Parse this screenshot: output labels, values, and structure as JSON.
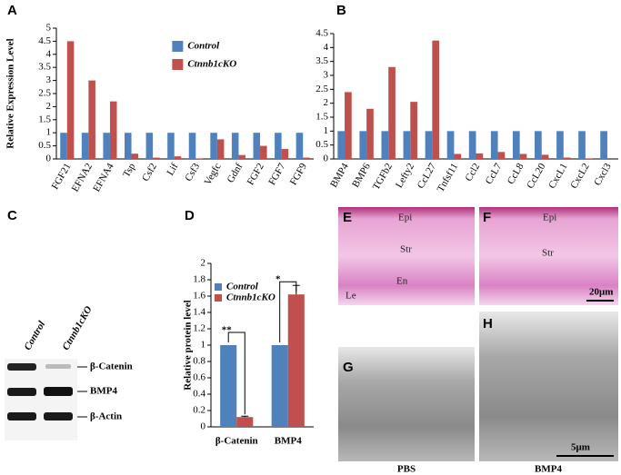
{
  "chart_data": [
    {
      "type": "bar",
      "y_label": "Relative Expression Level",
      "categories": [
        "FGF21",
        "EFNA2",
        "EFNA4",
        "Tsp",
        "Csf2",
        "Lif",
        "Csf3",
        "Vegfc",
        "Gdnf",
        "FGF2",
        "FGF7",
        "FGF9"
      ],
      "series": [
        {
          "name": "Control",
          "color": "#4f81bd",
          "values": [
            1,
            1,
            1,
            1,
            1,
            1,
            1,
            1,
            1,
            1,
            1,
            1
          ]
        },
        {
          "name": "Ctnnb1cKO",
          "color": "#c0504d",
          "values": [
            4.5,
            3.0,
            2.2,
            0.2,
            0.05,
            0.1,
            0.02,
            0.75,
            0.15,
            0.5,
            0.38,
            0.05
          ]
        }
      ],
      "ylim": [
        0,
        5
      ],
      "yticks": [
        0,
        0.5,
        1,
        1.5,
        2,
        2.5,
        3,
        3.5,
        4,
        4.5,
        5
      ],
      "legend": "upper right"
    },
    {
      "type": "bar",
      "categories": [
        "BMP4",
        "BMP6",
        "TGFb2",
        "Lefty2",
        "CcL27",
        "Tnfsf11",
        "Ccl2",
        "CcL7",
        "CcL8",
        "CcL20",
        "CxcL1",
        "CxcL2",
        "Cxcl3"
      ],
      "series": [
        {
          "name": "Control",
          "color": "#4f81bd",
          "values": [
            1,
            1,
            1,
            1,
            1,
            1,
            1,
            1,
            1,
            1,
            1,
            1,
            1
          ]
        },
        {
          "name": "Ctnnb1cKO",
          "color": "#c0504d",
          "values": [
            2.4,
            1.8,
            3.3,
            2.05,
            4.25,
            0.18,
            0.2,
            0.25,
            0.18,
            0.15,
            0.05,
            0.02,
            0
          ]
        }
      ],
      "ylim": [
        0,
        4.5
      ],
      "yticks": [
        0,
        0.5,
        1,
        1.5,
        2,
        2.5,
        3,
        3.5,
        4,
        4.5
      ]
    },
    {
      "type": "bar",
      "y_label": "Relative protein level",
      "categories": [
        "β-Catenin",
        "BMP4"
      ],
      "series": [
        {
          "name": "Control",
          "color": "#4f81bd",
          "values": [
            1,
            1
          ]
        },
        {
          "name": "Ctnnb1cKO",
          "color": "#c0504d",
          "values": [
            0.12,
            1.62
          ],
          "errors": [
            0.01,
            0.11
          ]
        }
      ],
      "annotations": [
        "**",
        "*"
      ],
      "ylim": [
        0,
        2
      ],
      "yticks": [
        0,
        0.2,
        0.4,
        0.6,
        0.8,
        1,
        1.2,
        1.4,
        1.6,
        1.8,
        2
      ],
      "legend": "upper left"
    }
  ],
  "panel_labels": [
    "A",
    "B",
    "C",
    "D",
    "E",
    "F",
    "G",
    "H"
  ],
  "blot": {
    "lanes": [
      "Control",
      "Ctnnb1cKO"
    ],
    "bands": [
      "β-Catenin",
      "BMP4",
      "β-Actin"
    ]
  },
  "histology": {
    "E_labels": [
      "Epi",
      "Str",
      "En",
      "Le"
    ],
    "F_labels": [
      "Epi",
      "Str"
    ],
    "scale_bars": [
      "20μm",
      "5μm"
    ],
    "captions": [
      "PBS",
      "BMP4"
    ]
  }
}
